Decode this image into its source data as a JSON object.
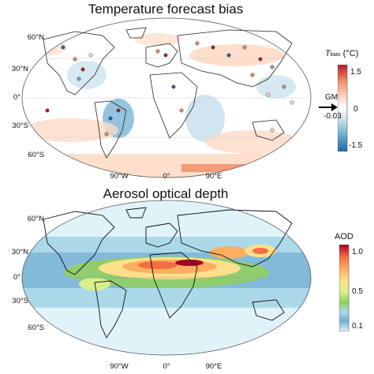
{
  "panels": [
    {
      "title": "Temperature forecast bias",
      "lat_labels": [
        "60°N",
        "30°N",
        "0°",
        "30°S",
        "60°S"
      ],
      "lon_labels": [
        "90°W",
        "0°",
        "90°E"
      ],
      "colorbar": {
        "symbol_main": "T",
        "symbol_sub": "bias",
        "unit": " (°C)",
        "ticks": [
          "1.5",
          "0",
          "-1.5"
        ],
        "colors": [
          "#b2182b",
          "#ef8a62",
          "#fddbc7",
          "#ffffff",
          "#d1e5f0",
          "#67a9cf",
          "#2166ac"
        ]
      },
      "gm_label": "GM",
      "gm_value": "-0.03"
    },
    {
      "title": "Aerosol optical depth",
      "lat_labels": [
        "60°N",
        "30°N",
        "0°",
        "30°S",
        "60°S"
      ],
      "lon_labels": [
        "90°W",
        "0°",
        "90°E"
      ],
      "colorbar": {
        "title": "AOD",
        "ticks": [
          "1.0",
          "0.5",
          "0.1"
        ],
        "colors": [
          "#a50026",
          "#f46d43",
          "#fdae61",
          "#fee08b",
          "#d9ef8b",
          "#91cf60",
          "#abd9e9",
          "#74add1",
          "#e0f3f8"
        ]
      }
    }
  ]
}
